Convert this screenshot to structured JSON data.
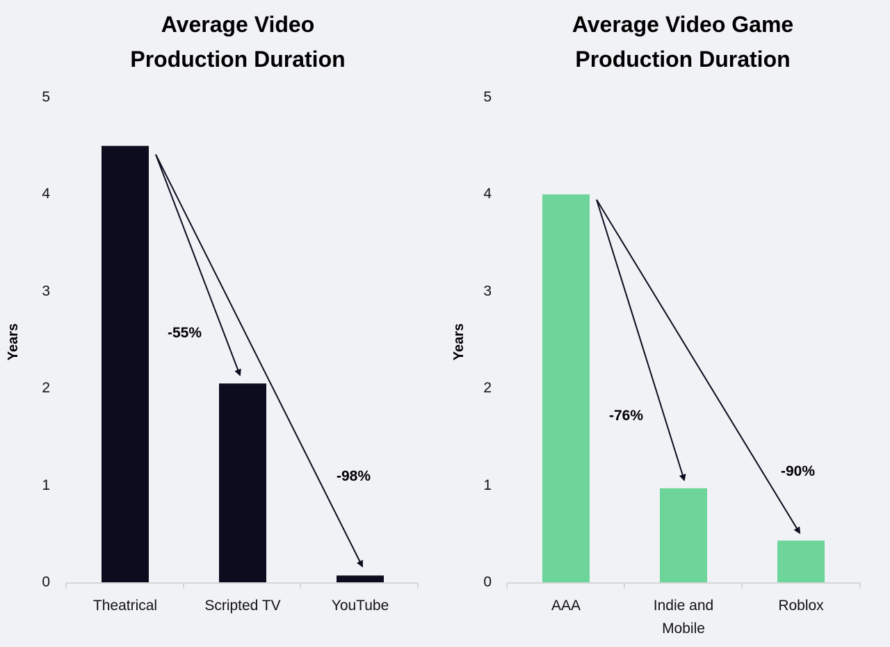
{
  "chart_data": [
    {
      "type": "bar",
      "title": "Average Video Production Duration",
      "title_lines": [
        "Average Video",
        "Production Duration"
      ],
      "xlabel": "",
      "ylabel": "Years",
      "ylim": [
        0,
        5
      ],
      "yticks": [
        "0",
        "1",
        "2",
        "3",
        "4",
        "5"
      ],
      "categories": [
        "Theatrical",
        "Scripted TV",
        "YouTube"
      ],
      "values": [
        4.5,
        2.05,
        0.07
      ],
      "bar_color": "#0b0c1e",
      "grid": false,
      "annotations": [
        {
          "text": "-55%",
          "from": "Theatrical",
          "to": "Scripted TV"
        },
        {
          "text": "-98%",
          "from": "Theatrical",
          "to": "YouTube"
        }
      ]
    },
    {
      "type": "bar",
      "title": "Average Video Game Production Duration",
      "title_lines": [
        "Average Video Game",
        "Production Duration"
      ],
      "xlabel": "",
      "ylabel": "Years",
      "ylim": [
        0,
        5
      ],
      "yticks": [
        "0",
        "1",
        "2",
        "3",
        "4",
        "5"
      ],
      "categories": [
        "AAA",
        "Indie and Mobile",
        "Roblox"
      ],
      "category_lines": [
        [
          "AAA"
        ],
        [
          "Indie and",
          "Mobile"
        ],
        [
          "Roblox"
        ]
      ],
      "values": [
        4.0,
        0.97,
        0.43
      ],
      "bar_color": "#6dd59a",
      "grid": false,
      "annotations": [
        {
          "text": "-76%",
          "from": "AAA",
          "to": "Indie and Mobile"
        },
        {
          "text": "-90%",
          "from": "AAA",
          "to": "Roblox"
        }
      ]
    }
  ]
}
